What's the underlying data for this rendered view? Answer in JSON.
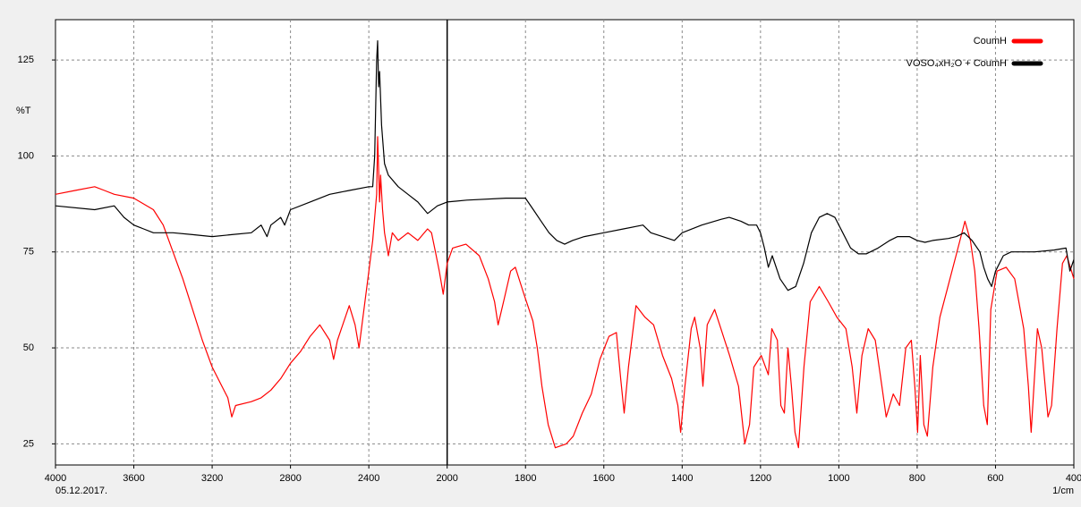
{
  "chart_data": {
    "type": "line",
    "y_label": "%T",
    "date": "05.12.2017.",
    "x_unit": "1/cm",
    "xlim": [
      4000,
      400
    ],
    "ylim": [
      19.5,
      135.5
    ],
    "scale_break": {
      "at": 2000,
      "expansion": 2
    },
    "xticks": [
      4000,
      3600,
      3200,
      2800,
      2400,
      2000,
      1800,
      1600,
      1400,
      1200,
      1000,
      800,
      600,
      400
    ],
    "yticks": [
      25,
      50,
      75,
      100,
      125
    ],
    "grid": true,
    "legend": "upper right",
    "series": [
      {
        "name": "CoumH",
        "color": "#ff0000",
        "x": [
          4000,
          3900,
          3800,
          3750,
          3700,
          3600,
          3500,
          3450,
          3400,
          3350,
          3300,
          3250,
          3200,
          3150,
          3120,
          3100,
          3080,
          3000,
          2950,
          2900,
          2850,
          2800,
          2750,
          2700,
          2650,
          2600,
          2580,
          2560,
          2520,
          2500,
          2470,
          2450,
          2430,
          2400,
          2380,
          2360,
          2355,
          2345,
          2340,
          2330,
          2320,
          2300,
          2280,
          2250,
          2200,
          2150,
          2100,
          2080,
          2060,
          2040,
          2020,
          2000,
          1986,
          1952,
          1918,
          1895,
          1879,
          1870,
          1856,
          1838,
          1826,
          1804,
          1781,
          1770,
          1758,
          1742,
          1724,
          1696,
          1678,
          1655,
          1632,
          1610,
          1587,
          1568,
          1557,
          1548,
          1537,
          1518,
          1495,
          1473,
          1450,
          1427,
          1411,
          1404,
          1393,
          1377,
          1368,
          1354,
          1347,
          1336,
          1317,
          1301,
          1279,
          1256,
          1240,
          1228,
          1217,
          1198,
          1180,
          1171,
          1157,
          1148,
          1139,
          1130,
          1121,
          1112,
          1103,
          1089,
          1073,
          1050,
          1027,
          1005,
          982,
          966,
          954,
          941,
          925,
          907,
          890,
          879,
          861,
          845,
          829,
          815,
          806,
          799,
          792,
          783,
          774,
          760,
          742,
          724,
          701,
          678,
          664,
          653,
          642,
          630,
          621,
          612,
          596,
          573,
          551,
          528,
          516,
          509,
          502,
          493,
          482,
          466,
          457,
          443,
          429,
          418,
          406,
          400
        ],
        "values": [
          90,
          91,
          92,
          91,
          90,
          89,
          86,
          82,
          75,
          68,
          60,
          52,
          45,
          40,
          37,
          32,
          35,
          36,
          37,
          39,
          42,
          46,
          49,
          53,
          56,
          52,
          47,
          52,
          58,
          61,
          56,
          50,
          58,
          70,
          78,
          90,
          105,
          88,
          95,
          86,
          80,
          74,
          80,
          78,
          80,
          78,
          81,
          80,
          75,
          70,
          64,
          72,
          76,
          77,
          74,
          68,
          62,
          56,
          62,
          70,
          71,
          64,
          57,
          50,
          40,
          30,
          24,
          25,
          27,
          33,
          38,
          47,
          53,
          54,
          42,
          33,
          45,
          61,
          58,
          56,
          48,
          42,
          35,
          28,
          40,
          55,
          58,
          50,
          40,
          56,
          60,
          55,
          48,
          40,
          25,
          30,
          45,
          48,
          43,
          55,
          52,
          35,
          33,
          50,
          40,
          28,
          24,
          45,
          62,
          66,
          62,
          58,
          55,
          45,
          33,
          48,
          55,
          52,
          40,
          32,
          38,
          35,
          50,
          52,
          40,
          28,
          48,
          30,
          27,
          45,
          58,
          65,
          74,
          83,
          78,
          70,
          55,
          35,
          30,
          60,
          70,
          71,
          68,
          55,
          40,
          28,
          40,
          55,
          50,
          32,
          35,
          55,
          72,
          74,
          70,
          68
        ]
      },
      {
        "name": "VOSO₄xH₂O + CoumH",
        "color": "#000000",
        "x": [
          4000,
          3800,
          3700,
          3650,
          3600,
          3550,
          3500,
          3400,
          3300,
          3200,
          3100,
          3000,
          2950,
          2920,
          2900,
          2850,
          2830,
          2800,
          2700,
          2600,
          2500,
          2400,
          2380,
          2370,
          2360,
          2355,
          2350,
          2345,
          2335,
          2320,
          2300,
          2250,
          2200,
          2150,
          2100,
          2050,
          2000,
          1950,
          1850,
          1800,
          1780,
          1760,
          1740,
          1720,
          1700,
          1680,
          1650,
          1600,
          1550,
          1500,
          1480,
          1450,
          1420,
          1400,
          1350,
          1300,
          1280,
          1250,
          1230,
          1210,
          1200,
          1190,
          1180,
          1170,
          1150,
          1130,
          1110,
          1090,
          1070,
          1050,
          1030,
          1010,
          990,
          970,
          950,
          930,
          900,
          870,
          850,
          820,
          800,
          780,
          760,
          720,
          700,
          680,
          660,
          640,
          630,
          620,
          610,
          600,
          580,
          560,
          500,
          450,
          420,
          410,
          400
        ],
        "values": [
          87,
          86,
          87,
          84,
          82,
          81,
          80,
          80,
          79.5,
          79,
          79.5,
          80,
          82,
          79,
          82,
          84,
          82,
          86,
          88,
          90,
          91,
          92,
          92,
          100,
          125,
          130,
          118,
          122,
          108,
          98,
          95,
          92,
          90,
          88,
          85,
          87,
          88,
          88.5,
          89,
          89,
          86,
          83,
          80,
          78,
          77,
          78,
          79,
          80,
          81,
          82,
          80,
          79,
          78,
          80,
          82,
          83.5,
          84,
          83,
          82,
          82,
          80,
          76,
          71,
          74,
          68,
          65,
          66,
          72,
          80,
          84,
          85,
          84,
          80,
          76,
          74.5,
          74.5,
          76,
          78,
          79,
          79,
          78,
          77.5,
          78,
          78.5,
          79,
          80,
          78,
          75,
          71,
          68,
          66,
          70,
          74,
          75,
          75,
          75.5,
          76,
          70,
          73
        ]
      }
    ]
  }
}
